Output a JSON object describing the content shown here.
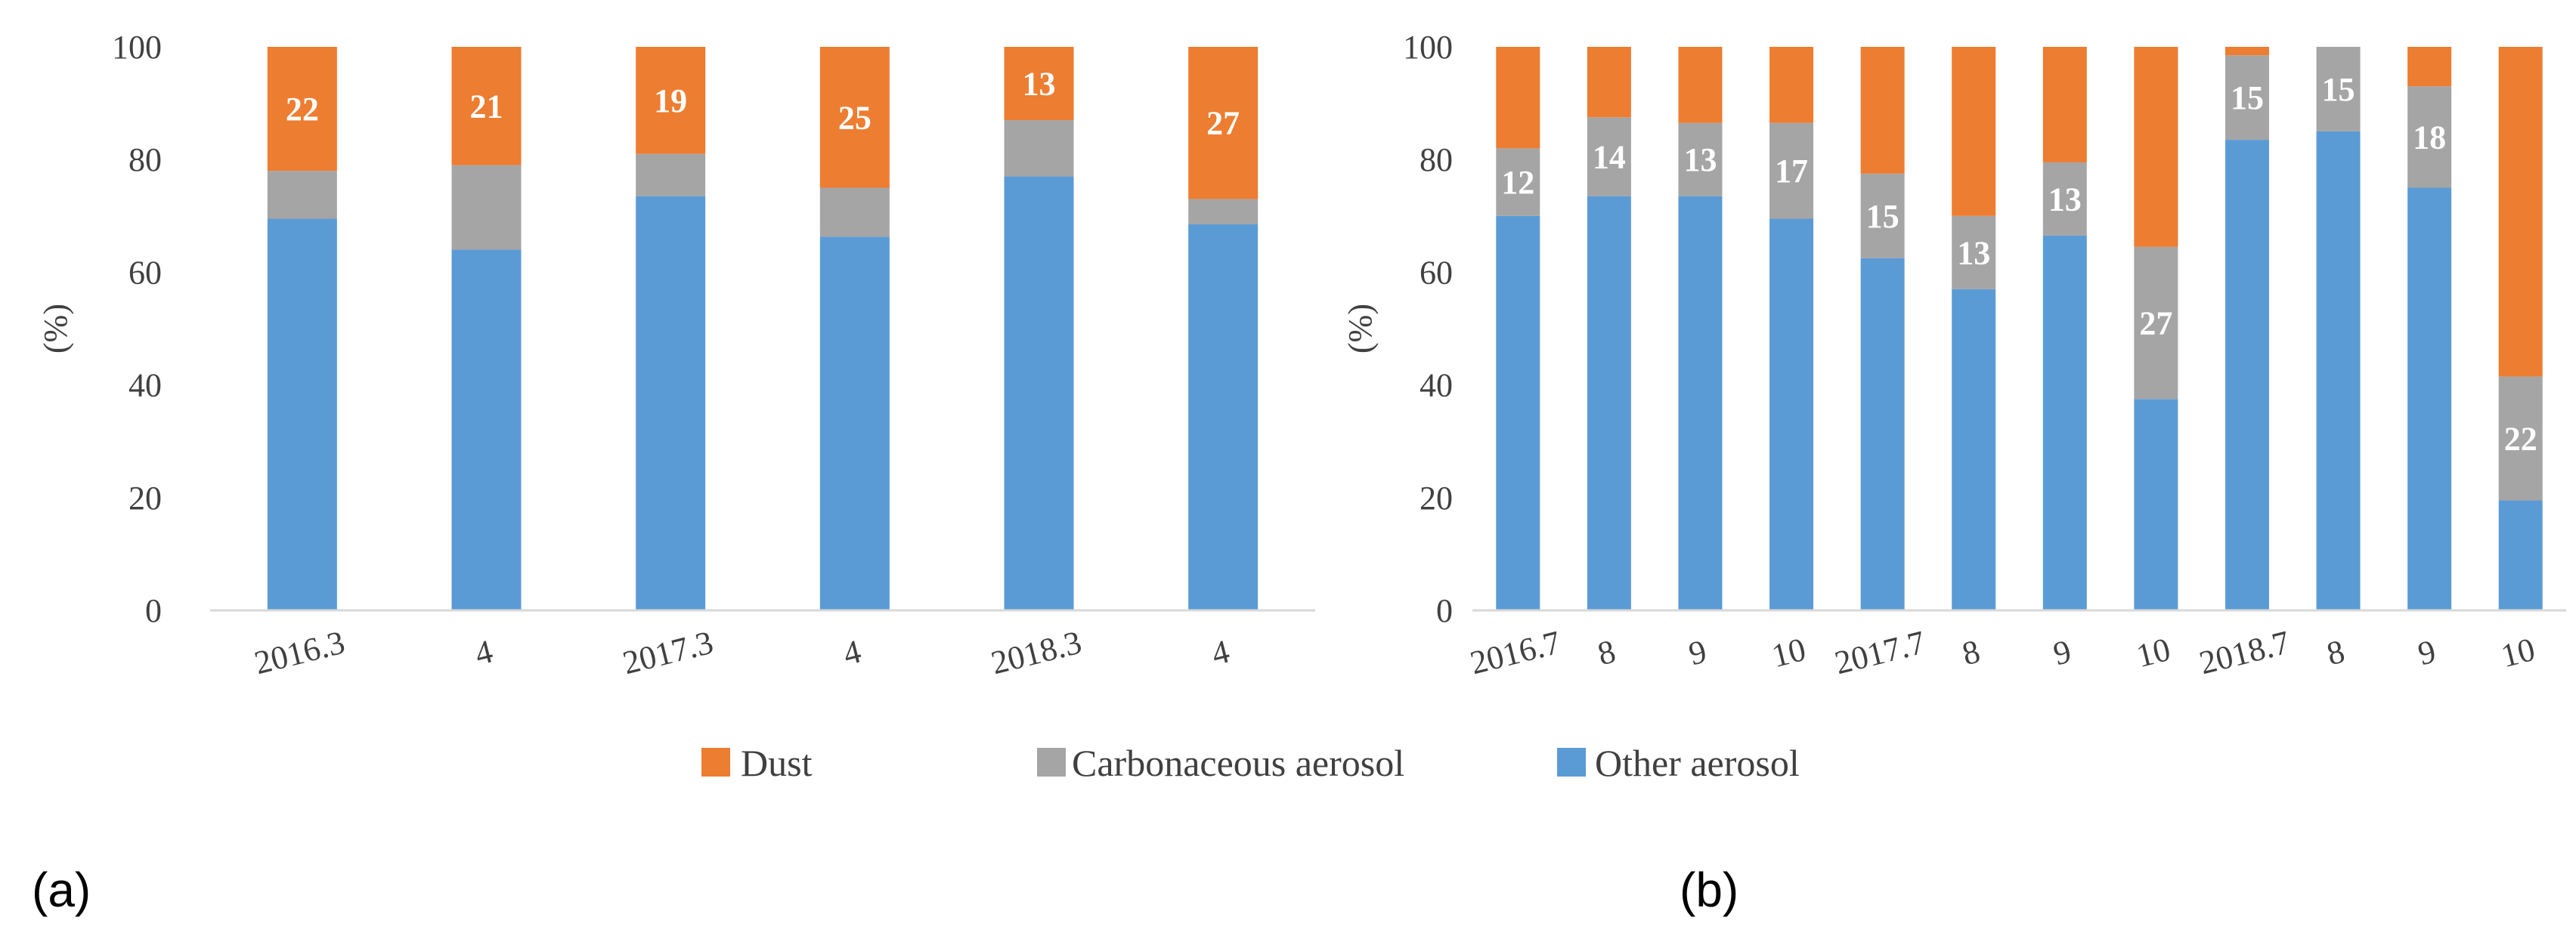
{
  "colors": {
    "dust": "#ED7D31",
    "carbonaceous": "#A5A5A5",
    "other": "#5B9BD5",
    "axis": "#D9D9D9",
    "text": "#404040"
  },
  "legend": {
    "dust": "Dust",
    "carbonaceous": "Carbonaceous aerosol",
    "other": "Other aerosol"
  },
  "panels": {
    "a": "(a)",
    "b": "(b)"
  },
  "chart_data": [
    {
      "type": "bar",
      "stacked": true,
      "panel": "(a)",
      "ylabel": "(%)",
      "ylim": [
        0,
        100
      ],
      "yticks": [
        0,
        20,
        40,
        60,
        80,
        100
      ],
      "categories": [
        "2016.3",
        "4",
        "2017.3",
        "4",
        "2018.3",
        "4"
      ],
      "series": [
        {
          "name": "Other aerosol",
          "values": [
            69.5,
            64,
            73.5,
            66.3,
            77,
            68.5
          ]
        },
        {
          "name": "Carbonaceous aerosol",
          "values": [
            8.5,
            15,
            7.5,
            8.7,
            10,
            4.5
          ]
        },
        {
          "name": "Dust",
          "values": [
            22,
            21,
            19,
            25,
            13,
            27
          ]
        }
      ],
      "data_labels": {
        "Dust": [
          "22",
          "21",
          "19",
          "25",
          "13",
          "27"
        ]
      }
    },
    {
      "type": "bar",
      "stacked": true,
      "panel": "(b)",
      "ylabel": "(%)",
      "ylim": [
        0,
        100
      ],
      "yticks": [
        0,
        20,
        40,
        60,
        80,
        100
      ],
      "categories": [
        "2016.7",
        "8",
        "9",
        "10",
        "2017.7",
        "8",
        "9",
        "10",
        "2018.7",
        "8",
        "9",
        "10"
      ],
      "series": [
        {
          "name": "Other aerosol",
          "values": [
            70,
            73.5,
            73.5,
            69.5,
            62.5,
            57,
            66.5,
            37.5,
            83.5,
            85,
            75,
            19.5
          ]
        },
        {
          "name": "Carbonaceous aerosol",
          "values": [
            12,
            14,
            13,
            17,
            15,
            13,
            13,
            27,
            15,
            15,
            18,
            22
          ]
        },
        {
          "name": "Dust",
          "values": [
            18,
            12.5,
            13.5,
            13.5,
            22.5,
            30,
            20.5,
            35.5,
            1.5,
            0,
            7,
            58.5
          ]
        }
      ],
      "data_labels": {
        "Carbonaceous aerosol": [
          "12",
          "14",
          "13",
          "17",
          "15",
          "13",
          "13",
          "27",
          "15",
          "15",
          "18",
          "22"
        ]
      }
    }
  ]
}
